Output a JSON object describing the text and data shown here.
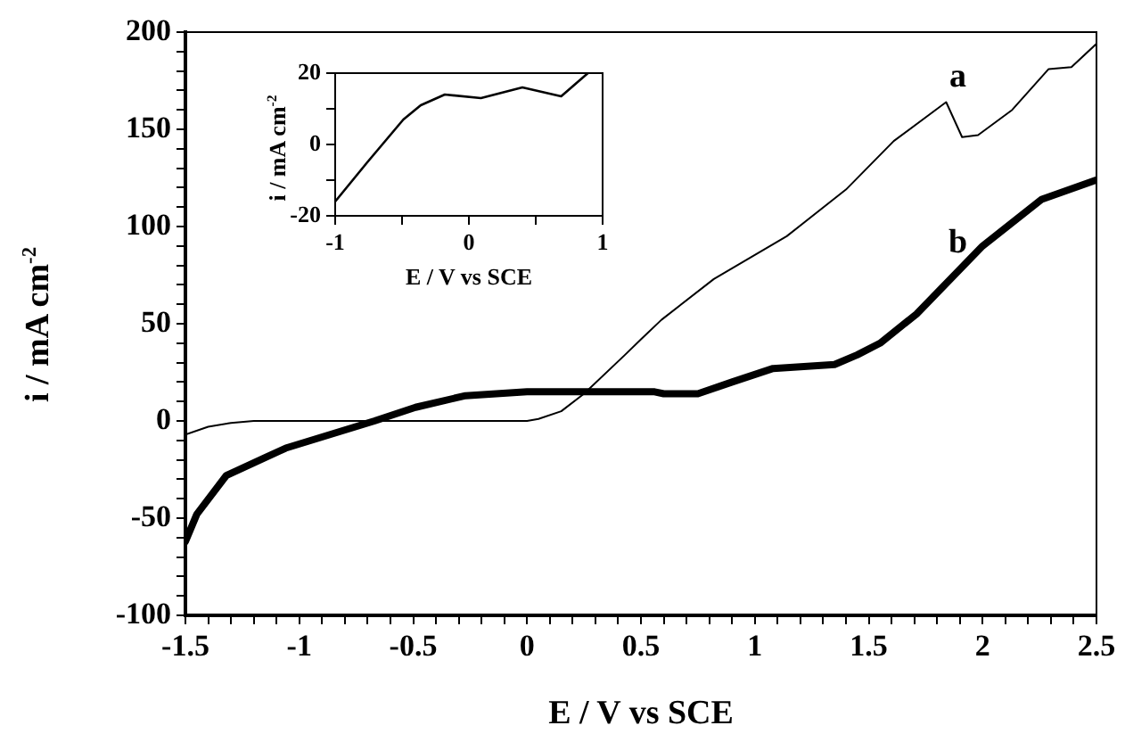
{
  "chart_data": [
    {
      "type": "line",
      "xlabel": "E / V vs SCE",
      "ylabel": "i / mA cm$^{-2}$",
      "xlim": [
        -1.5,
        2.5
      ],
      "ylim": [
        -100,
        200
      ],
      "xticks": [
        -1.5,
        {
          "value": -1.4,
          "label": null
        },
        {
          "value": -1.3,
          "label": null
        },
        {
          "value": -1.2,
          "label": null
        },
        {
          "value": -1.1,
          "label": null
        },
        -1,
        {
          "value": -0.9,
          "label": null
        },
        {
          "value": -0.8,
          "label": null
        },
        {
          "value": -0.7,
          "label": null
        },
        {
          "value": -0.6,
          "label": null
        },
        -0.5,
        {
          "value": -0.4,
          "label": null
        },
        {
          "value": -0.3,
          "label": null
        },
        {
          "value": -0.2,
          "label": null
        },
        {
          "value": -0.1,
          "label": null
        },
        0,
        {
          "value": 0.1,
          "label": null
        },
        {
          "value": 0.2,
          "label": null
        },
        {
          "value": 0.3,
          "label": null
        },
        {
          "value": 0.4,
          "label": null
        },
        0.5,
        {
          "value": 0.6,
          "label": null
        },
        {
          "value": 0.7,
          "label": null
        },
        {
          "value": 0.8,
          "label": null
        },
        {
          "value": 0.9,
          "label": null
        },
        1,
        {
          "value": 1.1,
          "label": null
        },
        {
          "value": 1.2,
          "label": null
        },
        {
          "value": 1.3,
          "label": null
        },
        {
          "value": 1.4,
          "label": null
        },
        1.5,
        {
          "value": 1.6,
          "label": null
        },
        {
          "value": 1.7,
          "label": null
        },
        {
          "value": 1.8,
          "label": null
        },
        {
          "value": 1.9,
          "label": null
        },
        2,
        {
          "value": 2.1,
          "label": null
        },
        {
          "value": 2.2,
          "label": null
        },
        {
          "value": 2.3,
          "label": null
        },
        {
          "value": 2.4,
          "label": null
        },
        2.5
      ],
      "yticks": [
        -100,
        {
          "value": -90,
          "label": null
        },
        {
          "value": -80,
          "label": null
        },
        {
          "value": -70,
          "label": null
        },
        {
          "value": -60,
          "label": null
        },
        -50,
        {
          "value": -40,
          "label": null
        },
        {
          "value": -30,
          "label": null
        },
        {
          "value": -20,
          "label": null
        },
        {
          "value": -10,
          "label": null
        },
        0,
        {
          "value": 10,
          "label": null
        },
        {
          "value": 20,
          "label": null
        },
        {
          "value": 30,
          "label": null
        },
        {
          "value": 40,
          "label": null
        },
        50,
        {
          "value": 60,
          "label": null
        },
        {
          "value": 70,
          "label": null
        },
        {
          "value": 80,
          "label": null
        },
        {
          "value": 90,
          "label": null
        },
        100,
        {
          "value": 110,
          "label": null
        },
        {
          "value": 120,
          "label": null
        },
        {
          "value": 130,
          "label": null
        },
        {
          "value": 140,
          "label": null
        },
        150,
        {
          "value": 160,
          "label": null
        },
        {
          "value": 170,
          "label": null
        },
        {
          "value": 180,
          "label": null
        },
        {
          "value": 190,
          "label": null
        },
        200
      ],
      "grid": false,
      "legend": false,
      "marker": "none",
      "series": [
        {
          "name": "a",
          "color": "#000000",
          "x": [
            -1.5,
            -1.4,
            -1.3,
            -1.2,
            -0.5,
            0,
            0.05,
            0.15,
            0.25,
            0.43,
            0.5,
            0.59,
            0.82,
            1.14,
            1.4,
            1.61,
            1.84,
            1.91,
            1.98,
            2.13,
            2.29,
            2.39,
            2.5
          ],
          "values": [
            -7,
            -3,
            -1,
            0,
            0,
            0,
            1,
            5,
            14,
            34,
            42,
            52,
            73,
            95,
            119,
            144,
            164,
            146,
            147,
            160,
            181,
            182,
            194
          ]
        },
        {
          "name": "b",
          "color": "#000000",
          "x": [
            -1.5,
            -1.45,
            -1.32,
            -1.06,
            -0.67,
            -0.49,
            -0.27,
            0,
            0.56,
            0.6,
            0.75,
            0.9,
            1.08,
            1.35,
            1.45,
            1.55,
            1.71,
            2.0,
            2.26,
            2.5
          ],
          "values": [
            -62,
            -48,
            -28,
            -14,
            0,
            7,
            13,
            15,
            15,
            14,
            14,
            20,
            27,
            29,
            34,
            40,
            55,
            90,
            114,
            124
          ]
        }
      ]
    },
    {
      "type": "line",
      "xlabel": "E / V vs SCE",
      "ylabel": "i / mA cm$^{-2}$",
      "xlim": [
        -1,
        1
      ],
      "ylim": [
        -20,
        20
      ],
      "xticks": [
        -1,
        {
          "value": -0.5,
          "label": null
        },
        0,
        {
          "value": 0.5,
          "label": null
        },
        1
      ],
      "yticks": [
        -20,
        {
          "value": -10,
          "label": null
        },
        0,
        {
          "value": 10,
          "label": null
        },
        20
      ],
      "grid": false,
      "legend": false,
      "marker": "none",
      "series": [
        {
          "color": "#000000",
          "x": [
            -1,
            -0.76,
            -0.49,
            -0.36,
            -0.18,
            0.09,
            0.4,
            0.69,
            0.89
          ],
          "values": [
            -16,
            -5,
            7,
            11,
            14,
            13,
            16,
            13.5,
            20
          ]
        }
      ]
    }
  ]
}
